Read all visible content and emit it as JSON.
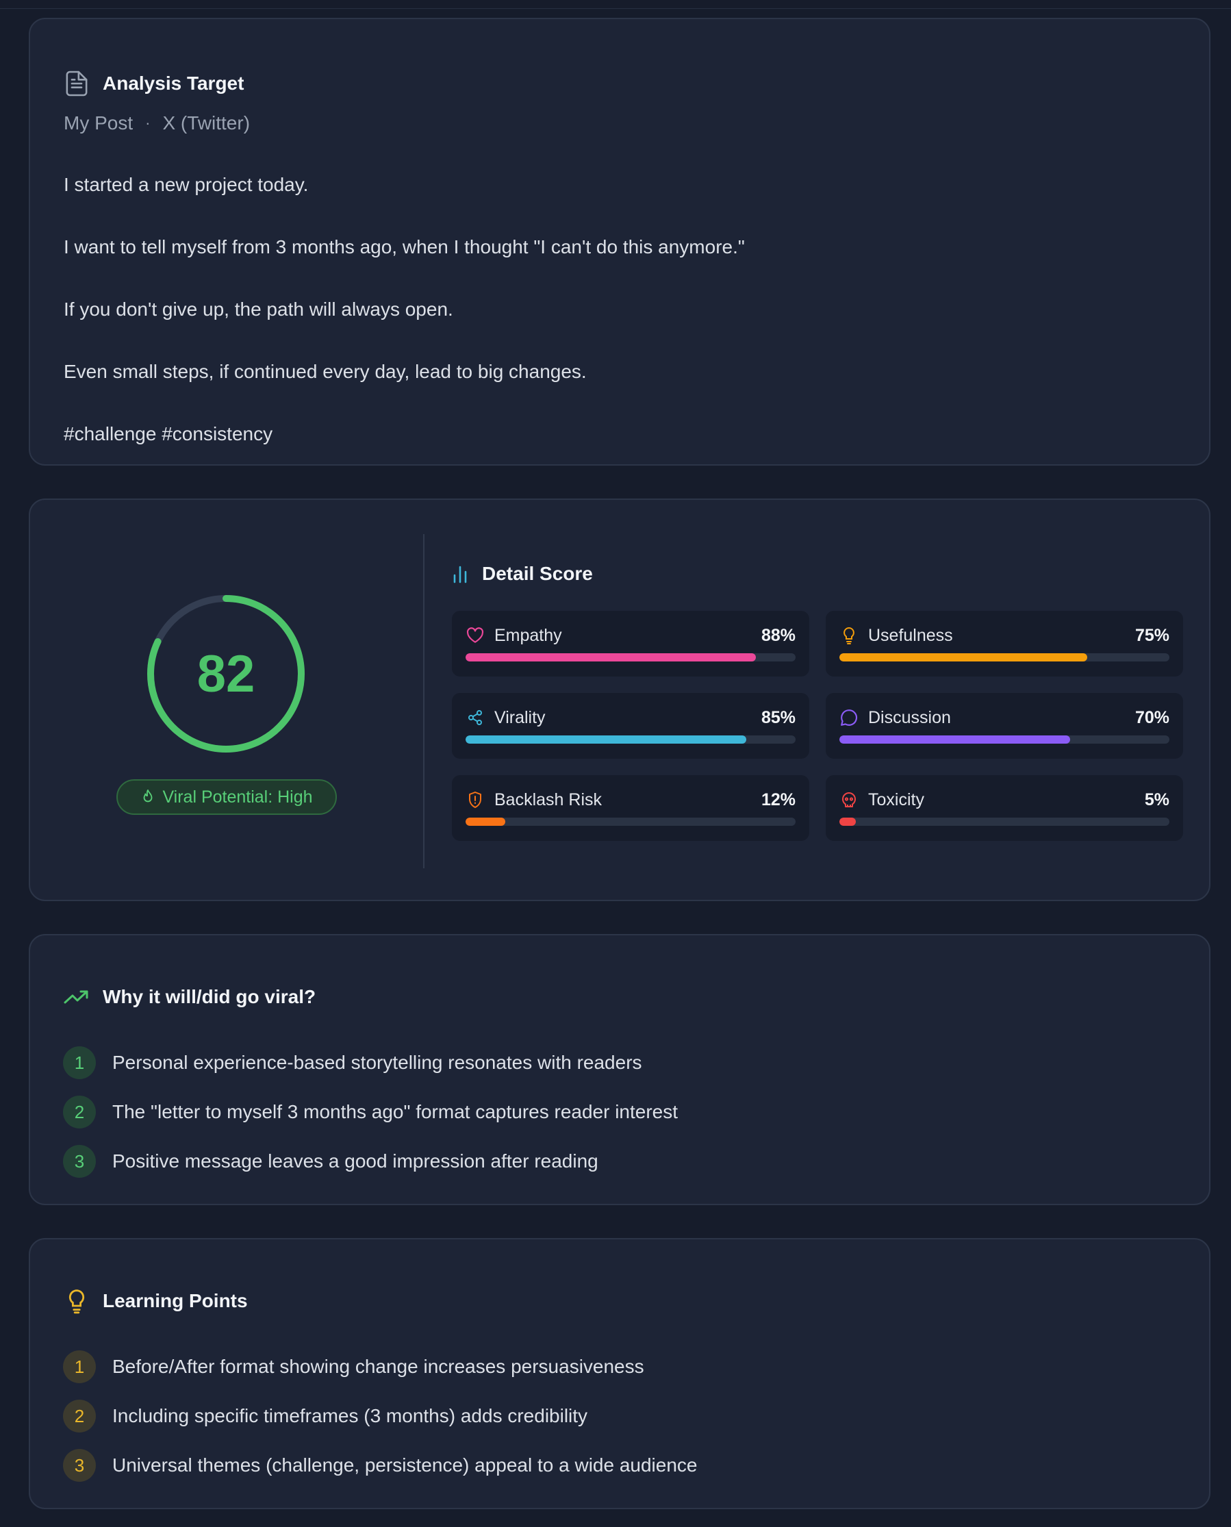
{
  "target": {
    "title": "Analysis Target",
    "source": "My Post",
    "platform": "X (Twitter)",
    "separator": "·",
    "post_lines": [
      "I started a new project today.",
      "I want to tell myself from 3 months ago, when I thought \"I can't do this anymore.\"",
      "If you don't give up, the path will always open.",
      "Even small steps, if continued every day, lead to big changes.",
      "#challenge #consistency"
    ]
  },
  "score": {
    "overall": "82",
    "overall_fraction": 0.82,
    "ring_color": "#4dc46a",
    "viral_label": "Viral Potential: High",
    "detail_title": "Detail Score",
    "metrics": [
      {
        "label": "Empathy",
        "value": "88%",
        "fraction": 0.88,
        "color": "#ec4899",
        "icon": "heart-icon"
      },
      {
        "label": "Usefulness",
        "value": "75%",
        "fraction": 0.75,
        "color": "#f59e0b",
        "icon": "lightbulb-icon"
      },
      {
        "label": "Virality",
        "value": "85%",
        "fraction": 0.85,
        "color": "#3eb7d9",
        "icon": "share-icon"
      },
      {
        "label": "Discussion",
        "value": "70%",
        "fraction": 0.7,
        "color": "#8b5cf6",
        "icon": "chat-bubble-icon"
      },
      {
        "label": "Backlash Risk",
        "value": "12%",
        "fraction": 0.12,
        "color": "#f97316",
        "icon": "shield-alert-icon"
      },
      {
        "label": "Toxicity",
        "value": "5%",
        "fraction": 0.05,
        "color": "#ef4444",
        "icon": "skull-icon"
      }
    ]
  },
  "viral_reasons": {
    "title": "Why it will/did go viral?",
    "items": [
      {
        "n": "1",
        "text": "Personal experience-based storytelling resonates with readers"
      },
      {
        "n": "2",
        "text": "The \"letter to myself 3 months ago\" format captures reader interest"
      },
      {
        "n": "3",
        "text": "Positive message leaves a good impression after reading"
      }
    ]
  },
  "learning": {
    "title": "Learning Points",
    "items": [
      {
        "n": "1",
        "text": "Before/After format showing change increases persuasiveness"
      },
      {
        "n": "2",
        "text": "Including specific timeframes (3 months) adds credibility"
      },
      {
        "n": "3",
        "text": "Universal themes (challenge, persistence) appeal to a wide audience"
      }
    ]
  }
}
